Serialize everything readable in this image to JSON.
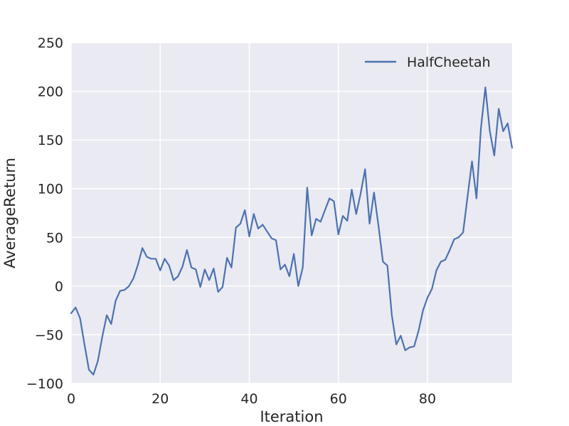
{
  "chart_data": {
    "type": "line",
    "xlabel": "Iteration",
    "ylabel": "AverageReturn",
    "xlim": [
      0,
      99
    ],
    "ylim": [
      -100,
      250
    ],
    "x_ticks": [
      0,
      20,
      40,
      60,
      80
    ],
    "y_ticks": [
      -100,
      -50,
      0,
      50,
      100,
      150,
      200,
      250
    ],
    "x_tick_labels": [
      "0",
      "20",
      "40",
      "60",
      "80"
    ],
    "y_tick_labels": [
      "−100",
      "−50",
      "0",
      "50",
      "100",
      "150",
      "200",
      "250"
    ],
    "grid": true,
    "legend_position": "top-right",
    "colors": {
      "background": "#EAEAF2",
      "grid": "#FFFFFF",
      "line": "#4C72B0"
    },
    "series": [
      {
        "name": "HalfCheetah",
        "x": [
          0,
          1,
          2,
          3,
          4,
          5,
          6,
          7,
          8,
          9,
          10,
          11,
          12,
          13,
          14,
          15,
          16,
          17,
          18,
          19,
          20,
          21,
          22,
          23,
          24,
          25,
          26,
          27,
          28,
          29,
          30,
          31,
          32,
          33,
          34,
          35,
          36,
          37,
          38,
          39,
          40,
          41,
          42,
          43,
          44,
          45,
          46,
          47,
          48,
          49,
          50,
          51,
          52,
          53,
          54,
          55,
          56,
          57,
          58,
          59,
          60,
          61,
          62,
          63,
          64,
          65,
          66,
          67,
          68,
          69,
          70,
          71,
          72,
          73,
          74,
          75,
          76,
          77,
          78,
          79,
          80,
          81,
          82,
          83,
          84,
          85,
          86,
          87,
          88,
          89,
          90,
          91,
          92,
          93,
          94,
          95,
          96,
          97,
          98,
          99
        ],
        "y": [
          -28,
          -22,
          -33,
          -60,
          -86,
          -91,
          -77,
          -52,
          -30,
          -39,
          -15,
          -5,
          -4,
          0,
          8,
          22,
          39,
          30,
          28,
          28,
          16,
          28,
          21,
          6,
          10,
          20,
          37,
          19,
          17,
          -1,
          17,
          6,
          18,
          -6,
          -1,
          29,
          19,
          60,
          64,
          78,
          51,
          74,
          59,
          63,
          56,
          49,
          47,
          17,
          22,
          10,
          33,
          0,
          19,
          101,
          52,
          69,
          66,
          78,
          90,
          87,
          53,
          72,
          67,
          99,
          74,
          95,
          120,
          64,
          96,
          62,
          25,
          21,
          -30,
          -60,
          -51,
          -66,
          -63,
          -62,
          -46,
          -25,
          -12,
          -3,
          16,
          25,
          27,
          37,
          48,
          50,
          55,
          92,
          128,
          90,
          162,
          204,
          159,
          134,
          182,
          159,
          167,
          142
        ]
      }
    ]
  }
}
